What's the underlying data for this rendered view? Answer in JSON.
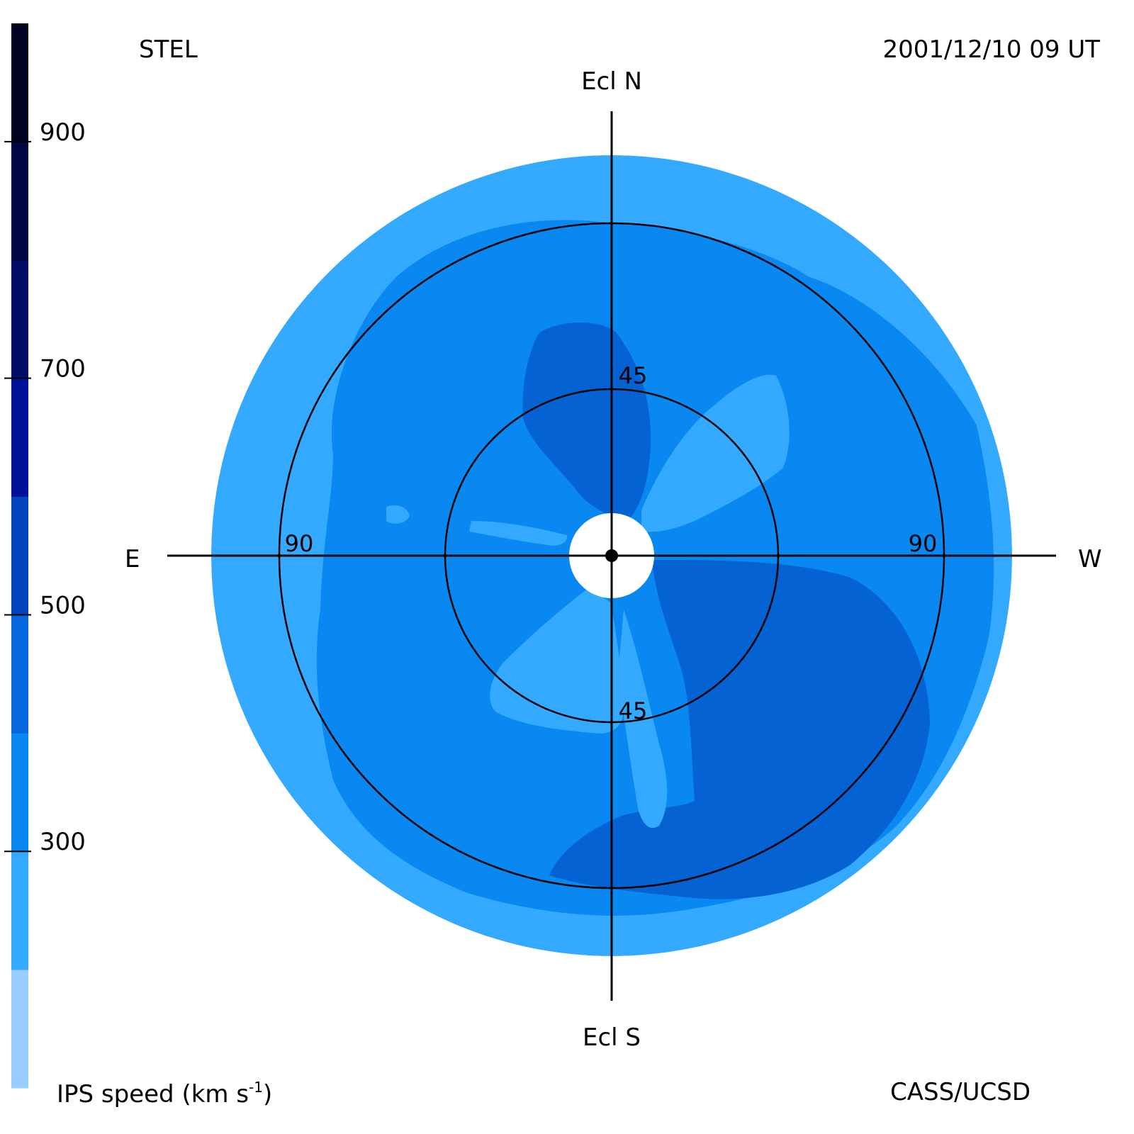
{
  "header": {
    "left_label": "STEL",
    "right_label": "2001/12/10 09 UT"
  },
  "footer": {
    "colorbar_label_main": "IPS speed (km s",
    "colorbar_label_sup": "-1",
    "colorbar_label_end": ")",
    "credit": "CASS/UCSD"
  },
  "directions": {
    "north": "Ecl N",
    "south": "Ecl S",
    "east": "E",
    "west": "W"
  },
  "chart_data": {
    "type": "heatmap",
    "title": "",
    "projection": "fisheye sky map centered on Sun, elongation radius",
    "elongation_circles": [
      45,
      90
    ],
    "ring_labels": [
      {
        "text": "45",
        "position": "north"
      },
      {
        "text": "45",
        "position": "south"
      },
      {
        "text": "90",
        "position": "east"
      },
      {
        "text": "90",
        "position": "west"
      }
    ],
    "max_elongation_deg": 108,
    "sun_occulted_radius_deg": 11,
    "colorbar": {
      "label": "IPS speed (km s-1)",
      "ticks": [
        300,
        500,
        700,
        900
      ],
      "range": [
        100,
        1000
      ],
      "levels": [
        {
          "min": 100,
          "max": 200,
          "color": "#99ccff"
        },
        {
          "min": 200,
          "max": 300,
          "color": "#33aaff"
        },
        {
          "min": 300,
          "max": 400,
          "color": "#0888f0"
        },
        {
          "min": 400,
          "max": 500,
          "color": "#0666dd"
        },
        {
          "min": 500,
          "max": 600,
          "color": "#0444bb"
        },
        {
          "min": 600,
          "max": 700,
          "color": "#001199"
        },
        {
          "min": 700,
          "max": 800,
          "color": "#000c66"
        },
        {
          "min": 800,
          "max": 900,
          "color": "#000644"
        },
        {
          "min": 900,
          "max": 1000,
          "color": "#000222"
        }
      ]
    }
  }
}
